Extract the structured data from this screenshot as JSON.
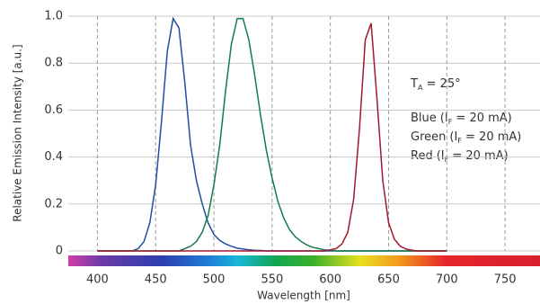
{
  "chart_data": {
    "type": "line",
    "x": [
      400,
      405,
      410,
      415,
      420,
      425,
      430,
      435,
      440,
      445,
      450,
      455,
      460,
      465,
      470,
      475,
      480,
      485,
      490,
      495,
      500,
      505,
      510,
      515,
      520,
      525,
      530,
      535,
      540,
      545,
      550,
      555,
      560,
      565,
      570,
      575,
      580,
      585,
      590,
      595,
      600,
      605,
      610,
      615,
      620,
      625,
      630,
      635,
      640,
      645,
      650,
      655,
      660,
      665,
      670,
      675,
      680,
      685,
      690,
      695,
      700
    ],
    "series": [
      {
        "name": "Blue",
        "color": "#1f4e9c",
        "values": [
          0,
          0,
          0,
          0,
          0,
          0,
          0,
          0.01,
          0.04,
          0.12,
          0.28,
          0.55,
          0.85,
          0.99,
          0.95,
          0.72,
          0.45,
          0.3,
          0.2,
          0.12,
          0.07,
          0.045,
          0.03,
          0.02,
          0.012,
          0.008,
          0.005,
          0.003,
          0.002,
          0,
          0,
          0,
          0,
          0,
          0,
          0,
          0,
          0,
          0,
          0,
          0,
          0,
          0,
          0,
          0,
          0,
          0,
          0,
          0,
          0,
          0,
          0,
          0,
          0,
          0,
          0,
          0,
          0,
          0,
          0,
          0
        ]
      },
      {
        "name": "Green",
        "color": "#137a4a",
        "values": [
          0,
          0,
          0,
          0,
          0,
          0,
          0,
          0,
          0,
          0,
          0,
          0,
          0,
          0,
          0,
          0.01,
          0.02,
          0.04,
          0.08,
          0.15,
          0.28,
          0.45,
          0.68,
          0.88,
          0.99,
          0.99,
          0.9,
          0.75,
          0.58,
          0.43,
          0.31,
          0.21,
          0.14,
          0.09,
          0.06,
          0.04,
          0.025,
          0.015,
          0.01,
          0.005,
          0.003,
          0,
          0,
          0,
          0,
          0,
          0,
          0,
          0,
          0,
          0,
          0,
          0,
          0,
          0,
          0,
          0,
          0,
          0,
          0,
          0
        ]
      },
      {
        "name": "Red",
        "color": "#a3162b",
        "values": [
          0,
          0,
          0,
          0,
          0,
          0,
          0,
          0,
          0,
          0,
          0,
          0,
          0,
          0,
          0,
          0,
          0,
          0,
          0,
          0,
          0,
          0,
          0,
          0,
          0,
          0,
          0,
          0,
          0,
          0,
          0,
          0,
          0,
          0,
          0,
          0,
          0,
          0,
          0,
          0,
          0.005,
          0.01,
          0.03,
          0.08,
          0.22,
          0.52,
          0.9,
          0.97,
          0.65,
          0.3,
          0.12,
          0.05,
          0.02,
          0.008,
          0.003,
          0,
          0,
          0,
          0,
          0,
          0
        ]
      }
    ],
    "legend_note": {
      "prefix": "(I",
      "sub": "F",
      "suffix": " = 20 mA)"
    },
    "annotation": {
      "text": "T",
      "sub": "A",
      "suffix": " = 25°"
    },
    "x_label": "Wavelength [nm]",
    "y_label": "Relative Emission Intensity [a.u.]",
    "xlim": [
      375,
      780
    ],
    "xticks": [
      400,
      450,
      500,
      550,
      600,
      650,
      700,
      750
    ],
    "ylim": [
      0,
      1
    ],
    "yticks": [
      0,
      0.2,
      0.4,
      0.6,
      0.8,
      {
        "value": 1,
        "label": "1.0"
      }
    ],
    "grid": true
  }
}
